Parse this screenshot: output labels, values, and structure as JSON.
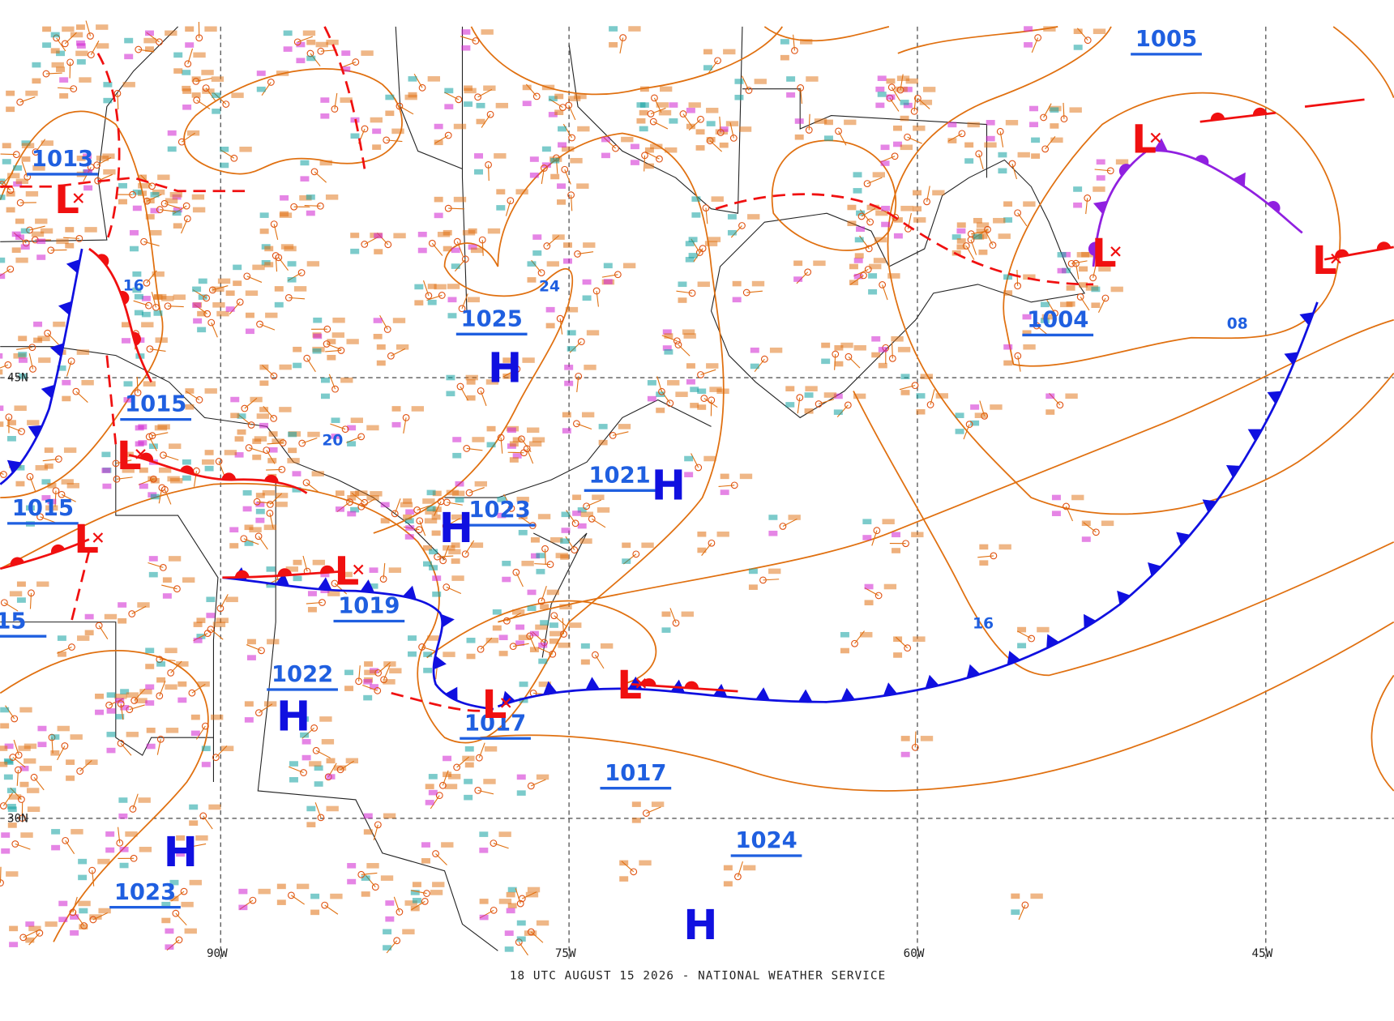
{
  "map": {
    "footer": "18 UTC AUGUST 15 2026 - NATIONAL WEATHER SERVICE",
    "longitudes": [
      "90W",
      "75W",
      "60W",
      "45W"
    ],
    "latitudes": [
      "45N",
      "30N"
    ],
    "pressure_labels": [
      1013,
      1015,
      1015,
      1019,
      1017,
      1025,
      1023,
      1021,
      1022,
      1023,
      1017,
      1024,
      1004,
      1005,
      15
    ],
    "centers": [
      "L",
      "L",
      "L",
      "L",
      "L",
      "L",
      "H",
      "H",
      "H",
      "H",
      "H",
      "H",
      "L",
      "L",
      "L"
    ],
    "isobar_labels": [
      "16",
      "24",
      "20",
      "08",
      "16"
    ]
  }
}
